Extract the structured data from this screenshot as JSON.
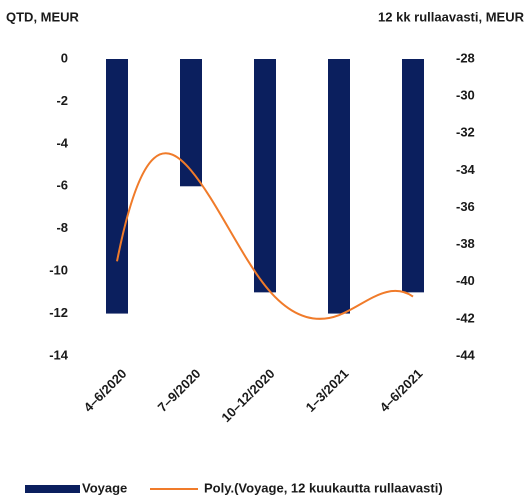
{
  "chart_data": {
    "type": "bar",
    "y_axis_label": "QTD, MEUR",
    "y2_axis_label": "12 kk rullaavasti, MEUR",
    "categories": [
      "4–6/2020",
      "7–9/2020",
      "10–12/2020",
      "1–3/2021",
      "4–6/2021"
    ],
    "series": [
      {
        "name": "Voyage",
        "type": "bar",
        "color": "#0b1f5e",
        "values": [
          -12,
          -6,
          -11,
          -12,
          -11
        ]
      },
      {
        "name": "Poly.(Voyage, 12 kuukautta rullaavasti)",
        "type": "line",
        "axis": "y2",
        "color": "#f07b2a",
        "values": [
          -38.9,
          -34,
          -40.2,
          -41.8,
          -40.8
        ]
      }
    ],
    "ylim": [
      -14,
      0
    ],
    "yticks": [
      0,
      -2,
      -4,
      -6,
      -8,
      -10,
      -12,
      -14
    ],
    "y2lim": [
      -44,
      -28
    ],
    "y2ticks": [
      -28,
      -30,
      -32,
      -34,
      -36,
      -38,
      -40,
      -42,
      -44
    ]
  }
}
